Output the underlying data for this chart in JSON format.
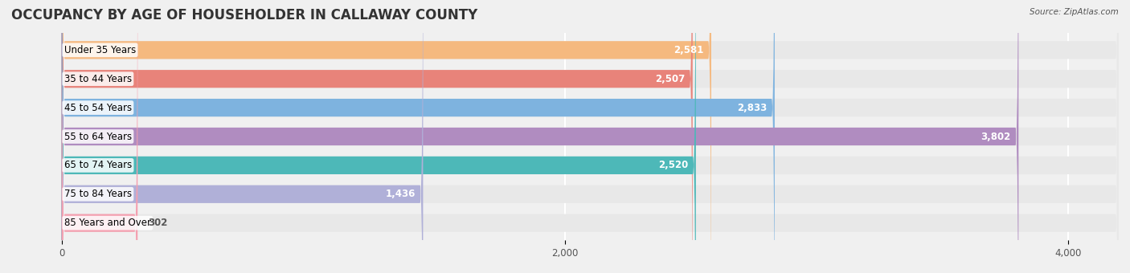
{
  "title": "OCCUPANCY BY AGE OF HOUSEHOLDER IN CALLAWAY COUNTY",
  "source": "Source: ZipAtlas.com",
  "categories": [
    "Under 35 Years",
    "35 to 44 Years",
    "45 to 54 Years",
    "55 to 64 Years",
    "65 to 74 Years",
    "75 to 84 Years",
    "85 Years and Over"
  ],
  "values": [
    2581,
    2507,
    2833,
    3802,
    2520,
    1436,
    302
  ],
  "bar_colors": [
    "#f5b97f",
    "#e8837a",
    "#7eb3df",
    "#b08cc0",
    "#4db8b8",
    "#b0b0d8",
    "#f4a0b0"
  ],
  "bar_edge_colors": [
    "#e8a060",
    "#d06060",
    "#5090c0",
    "#9060a0",
    "#30a0a0",
    "#8888c0",
    "#e080a0"
  ],
  "xlim": [
    -200,
    4200
  ],
  "xticks": [
    0,
    2000,
    4000
  ],
  "background_color": "#f0f0f0",
  "bar_bg_color": "#e8e8e8",
  "title_fontsize": 12,
  "label_fontsize": 8.5,
  "value_fontsize": 8.5,
  "bar_height": 0.62
}
